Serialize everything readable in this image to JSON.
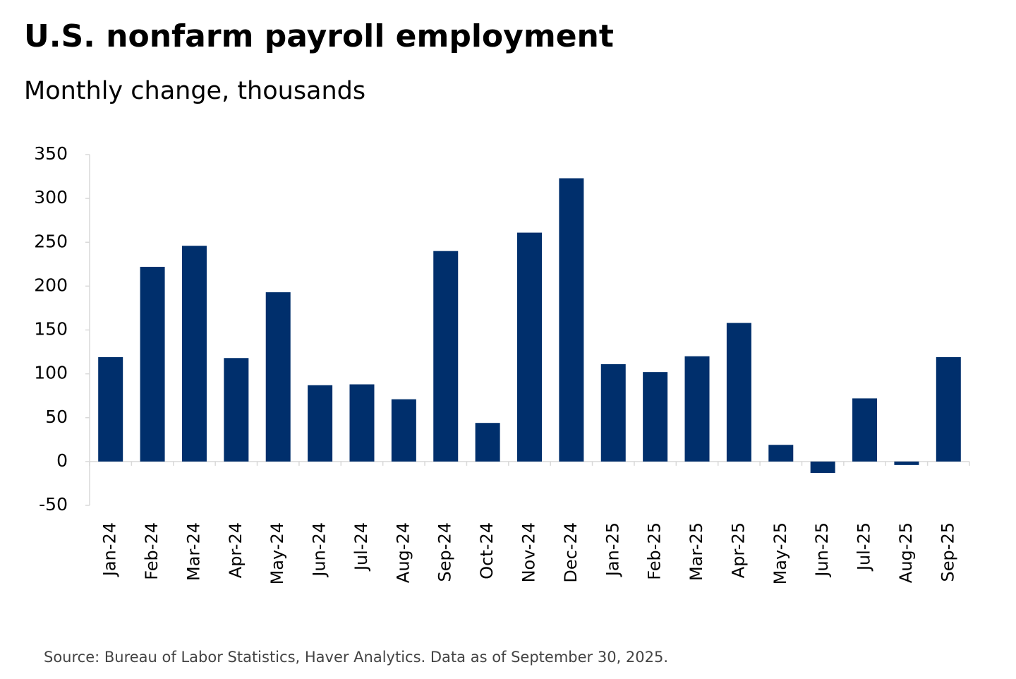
{
  "chart_data": {
    "type": "bar",
    "title": "U.S. nonfarm payroll employment",
    "subtitle": "Monthly change, thousands",
    "source": "Source: Bureau of Labor Statistics, Haver Analytics. Data as of September 30, 2025.",
    "categories": [
      "Jan-24",
      "Feb-24",
      "Mar-24",
      "Apr-24",
      "May-24",
      "Jun-24",
      "Jul-24",
      "Aug-24",
      "Sep-24",
      "Oct-24",
      "Nov-24",
      "Dec-24",
      "Jan-25",
      "Feb-25",
      "Mar-25",
      "Apr-25",
      "May-25",
      "Jun-25",
      "Jul-25",
      "Aug-25",
      "Sep-25"
    ],
    "values": [
      119,
      222,
      246,
      118,
      193,
      87,
      88,
      71,
      240,
      44,
      261,
      323,
      111,
      102,
      120,
      158,
      19,
      -13,
      72,
      -4,
      119
    ],
    "color": "#002f6c",
    "ylim": [
      -50,
      350
    ],
    "yticks": [
      -50,
      0,
      50,
      100,
      150,
      200,
      250,
      300,
      350
    ],
    "grid": false
  }
}
